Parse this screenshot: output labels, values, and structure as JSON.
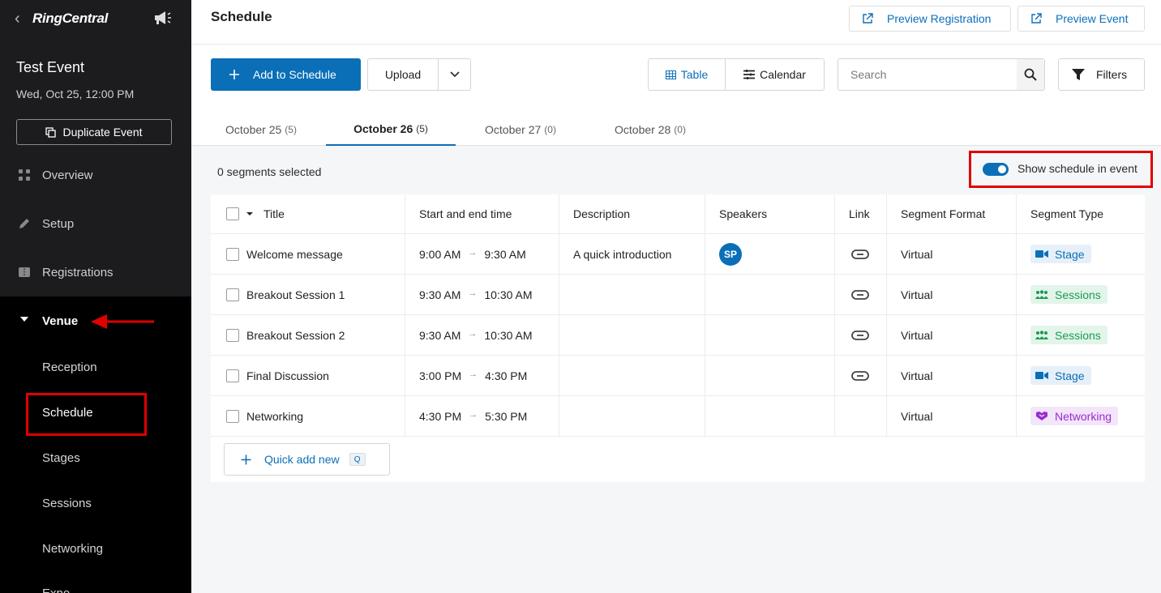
{
  "brand": {
    "name": "RingCentral"
  },
  "event": {
    "name": "Test Event",
    "date": "Wed, Oct 25, 12:00 PM",
    "duplicate_label": "Duplicate Event"
  },
  "nav": {
    "overview": "Overview",
    "setup": "Setup",
    "registrations": "Registrations",
    "venue": "Venue",
    "sub": {
      "reception": "Reception",
      "schedule": "Schedule",
      "stages": "Stages",
      "sessions": "Sessions",
      "networking": "Networking",
      "expo": "Expo"
    }
  },
  "header": {
    "title": "Schedule",
    "preview_registration": "Preview Registration",
    "preview_event": "Preview Event"
  },
  "toolbar": {
    "add_label": "Add to Schedule",
    "upload_label": "Upload",
    "view_table": "Table",
    "view_calendar": "Calendar",
    "search_placeholder": "Search",
    "filters_label": "Filters"
  },
  "tabs": [
    {
      "label": "October 25",
      "count": "(5)"
    },
    {
      "label": "October 26",
      "count": "(5)"
    },
    {
      "label": "October 27",
      "count": "(0)"
    },
    {
      "label": "October 28",
      "count": "(0)"
    }
  ],
  "selection": {
    "text": "0 segments selected"
  },
  "toggle": {
    "label": "Show schedule in event",
    "on": true
  },
  "table": {
    "columns": [
      "Title",
      "Start and end time",
      "Description",
      "Speakers",
      "Link",
      "Segment Format",
      "Segment Type"
    ],
    "rows": [
      {
        "title": "Welcome message",
        "start": "9:00 AM",
        "end": "9:30 AM",
        "description": "A quick introduction",
        "speaker": "SP",
        "format": "Virtual",
        "type": "Stage"
      },
      {
        "title": "Breakout Session 1",
        "start": "9:30 AM",
        "end": "10:30 AM",
        "description": "",
        "speaker": "",
        "format": "Virtual",
        "type": "Sessions"
      },
      {
        "title": "Breakout Session 2",
        "start": "9:30 AM",
        "end": "10:30 AM",
        "description": "",
        "speaker": "",
        "format": "Virtual",
        "type": "Sessions"
      },
      {
        "title": "Final Discussion",
        "start": "3:00 PM",
        "end": "4:30 PM",
        "description": "",
        "speaker": "",
        "format": "Virtual",
        "type": "Stage"
      },
      {
        "title": "Networking",
        "start": "4:30 PM",
        "end": "5:30 PM",
        "description": "",
        "speaker": "",
        "format": "Virtual",
        "type": "Networking"
      }
    ],
    "quick_add_label": "Quick add new",
    "quick_add_key": "Q"
  },
  "colors": {
    "accent": "#0a6fb7",
    "highlight": "#e00000",
    "sidebar": "#000000"
  }
}
